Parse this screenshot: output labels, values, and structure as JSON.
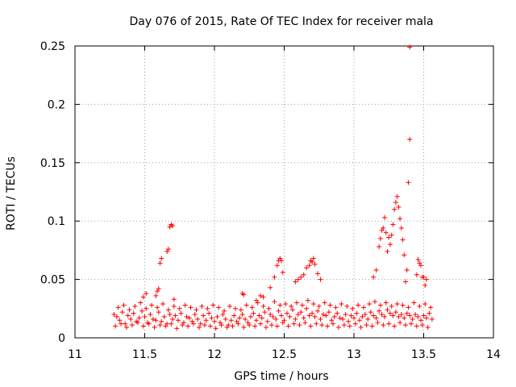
{
  "chart_data": {
    "type": "scatter",
    "title": "Day 076 of 2015, Rate Of TEC Index for receiver mala",
    "xlabel": "GPS time / hours",
    "ylabel": "ROTI / TECUs",
    "xlim": [
      11,
      14
    ],
    "ylim": [
      0,
      0.25
    ],
    "x_ticks": [
      11,
      11.5,
      12,
      12.5,
      13,
      13.5,
      14
    ],
    "x_tick_labels": [
      "11",
      "11.5",
      "12",
      "12.5",
      "13",
      "13.5",
      "14"
    ],
    "y_ticks": [
      0,
      0.05,
      0.1,
      0.15,
      0.2,
      0.25
    ],
    "y_tick_labels": [
      "0",
      "0.05",
      "0.1",
      "0.15",
      "0.2",
      "0.25"
    ],
    "grid": true,
    "marker": "+",
    "series_color": "#ff0000",
    "series": [
      {
        "name": "ROTI",
        "x": [
          11.28,
          11.3,
          11.32,
          11.34,
          11.36,
          11.38,
          11.4,
          11.42,
          11.44,
          11.46,
          11.48,
          11.5,
          11.52,
          11.54,
          11.56,
          11.58,
          11.6,
          11.62,
          11.64,
          11.66,
          11.68,
          11.7,
          11.72,
          11.74,
          11.76,
          11.78,
          11.8,
          11.82,
          11.84,
          11.86,
          11.88,
          11.9,
          11.92,
          11.94,
          11.96,
          11.98,
          12.0,
          12.02,
          12.04,
          12.06,
          12.08,
          12.1,
          12.12,
          12.14,
          12.16,
          12.18,
          12.2,
          12.22,
          12.24,
          12.26,
          12.28,
          12.3,
          12.32,
          12.34,
          12.36,
          12.38,
          12.4,
          12.42,
          12.44,
          12.46,
          12.48,
          12.5,
          12.52,
          12.54,
          12.56,
          12.58,
          12.6,
          12.62,
          12.64,
          12.66,
          12.68,
          12.7,
          12.72,
          12.74,
          12.76,
          12.78,
          12.8,
          12.82,
          12.84,
          12.86,
          12.88,
          12.9,
          12.92,
          12.94,
          12.96,
          12.98,
          13.0,
          13.02,
          13.04,
          13.06,
          13.08,
          13.1,
          13.12,
          13.14,
          13.16,
          13.18,
          13.2,
          13.22,
          13.24,
          13.26,
          13.28,
          13.3,
          13.32,
          13.34,
          13.36,
          13.38,
          13.4,
          13.42,
          13.44,
          13.46,
          13.48,
          13.5,
          13.52,
          13.54,
          13.56,
          11.29,
          11.33,
          11.37,
          11.41,
          11.45,
          11.49,
          11.53,
          11.57,
          11.61,
          11.65,
          11.69,
          11.73,
          11.77,
          11.81,
          11.85,
          11.89,
          11.93,
          11.97,
          12.01,
          12.05,
          12.09,
          12.13,
          12.17,
          12.21,
          12.25,
          12.29,
          12.33,
          12.37,
          12.41,
          12.45,
          12.49,
          12.53,
          12.57,
          12.61,
          12.65,
          12.69,
          12.73,
          12.77,
          12.81,
          12.85,
          12.89,
          12.93,
          12.97,
          13.01,
          13.05,
          13.09,
          13.13,
          13.17,
          13.21,
          13.25,
          13.29,
          13.33,
          13.37,
          13.41,
          13.45,
          13.49,
          13.53,
          11.31,
          11.35,
          11.39,
          11.43,
          11.47,
          11.51,
          11.55,
          11.59,
          11.63,
          11.67,
          11.71,
          11.75,
          11.79,
          11.83,
          11.87,
          11.91,
          11.95,
          11.99,
          12.03,
          12.07,
          12.11,
          12.15,
          12.19,
          12.23,
          12.27,
          12.31,
          12.35,
          12.39,
          12.43,
          12.47,
          12.51,
          12.55,
          12.59,
          12.63,
          12.67,
          12.71,
          12.75,
          12.79,
          12.83,
          12.87,
          12.91,
          12.95,
          12.99,
          13.03,
          13.07,
          13.11,
          13.15,
          13.19,
          13.23,
          13.27,
          13.31,
          13.35,
          13.39,
          13.43,
          13.47,
          13.51,
          13.55,
          11.49,
          11.51,
          11.58,
          11.59,
          11.6,
          11.61,
          11.62,
          11.66,
          11.67,
          11.68,
          11.69,
          11.7,
          11.71,
          12.2,
          12.21,
          12.3,
          12.33,
          12.35,
          12.4,
          12.43,
          12.45,
          12.46,
          12.47,
          12.48,
          12.49,
          12.58,
          12.6,
          12.62,
          12.64,
          12.66,
          12.68,
          12.69,
          12.7,
          12.71,
          12.72,
          12.74,
          12.76,
          13.14,
          13.16,
          13.18,
          13.19,
          13.2,
          13.21,
          13.22,
          13.23,
          13.24,
          13.25,
          13.26,
          13.27,
          13.28,
          13.29,
          13.3,
          13.31,
          13.32,
          13.33,
          13.34,
          13.35,
          13.36,
          13.37,
          13.38,
          13.39,
          13.4,
          13.4,
          13.45,
          13.46,
          13.47,
          13.48,
          13.49,
          13.5,
          13.51,
          13.52
        ],
        "y": [
          0.02,
          0.018,
          0.015,
          0.022,
          0.012,
          0.019,
          0.016,
          0.021,
          0.014,
          0.017,
          0.023,
          0.018,
          0.013,
          0.02,
          0.016,
          0.015,
          0.022,
          0.014,
          0.018,
          0.012,
          0.02,
          0.016,
          0.019,
          0.015,
          0.021,
          0.013,
          0.018,
          0.017,
          0.014,
          0.02,
          0.016,
          0.012,
          0.019,
          0.015,
          0.021,
          0.017,
          0.014,
          0.018,
          0.013,
          0.02,
          0.016,
          0.011,
          0.015,
          0.019,
          0.014,
          0.017,
          0.02,
          0.016,
          0.013,
          0.018,
          0.021,
          0.015,
          0.019,
          0.017,
          0.022,
          0.014,
          0.02,
          0.018,
          0.016,
          0.023,
          0.019,
          0.015,
          0.021,
          0.018,
          0.024,
          0.016,
          0.02,
          0.022,
          0.017,
          0.025,
          0.019,
          0.021,
          0.018,
          0.023,
          0.016,
          0.02,
          0.019,
          0.022,
          0.015,
          0.018,
          0.021,
          0.017,
          0.016,
          0.02,
          0.014,
          0.019,
          0.017,
          0.021,
          0.015,
          0.018,
          0.02,
          0.016,
          0.022,
          0.019,
          0.017,
          0.023,
          0.02,
          0.018,
          0.024,
          0.021,
          0.019,
          0.022,
          0.018,
          0.02,
          0.017,
          0.021,
          0.019,
          0.016,
          0.02,
          0.018,
          0.015,
          0.019,
          0.017,
          0.021,
          0.016,
          0.01,
          0.012,
          0.009,
          0.011,
          0.013,
          0.01,
          0.012,
          0.009,
          0.011,
          0.01,
          0.012,
          0.008,
          0.011,
          0.01,
          0.012,
          0.009,
          0.011,
          0.01,
          0.008,
          0.011,
          0.009,
          0.01,
          0.012,
          0.009,
          0.011,
          0.01,
          0.012,
          0.009,
          0.011,
          0.01,
          0.013,
          0.01,
          0.012,
          0.011,
          0.013,
          0.01,
          0.012,
          0.011,
          0.01,
          0.012,
          0.009,
          0.011,
          0.01,
          0.012,
          0.009,
          0.011,
          0.01,
          0.013,
          0.011,
          0.012,
          0.01,
          0.013,
          0.011,
          0.012,
          0.01,
          0.011,
          0.009,
          0.026,
          0.028,
          0.024,
          0.027,
          0.03,
          0.025,
          0.028,
          0.026,
          0.029,
          0.024,
          0.027,
          0.025,
          0.028,
          0.026,
          0.024,
          0.027,
          0.025,
          0.028,
          0.026,
          0.023,
          0.027,
          0.025,
          0.024,
          0.028,
          0.026,
          0.03,
          0.027,
          0.025,
          0.031,
          0.028,
          0.029,
          0.027,
          0.03,
          0.028,
          0.032,
          0.029,
          0.027,
          0.03,
          0.028,
          0.026,
          0.029,
          0.027,
          0.025,
          0.028,
          0.026,
          0.029,
          0.031,
          0.028,
          0.03,
          0.027,
          0.029,
          0.028,
          0.026,
          0.03,
          0.027,
          0.029,
          0.026,
          0.035,
          0.038,
          0.036,
          0.04,
          0.042,
          0.064,
          0.068,
          0.074,
          0.076,
          0.095,
          0.097,
          0.096,
          0.033,
          0.038,
          0.037,
          0.032,
          0.036,
          0.035,
          0.043,
          0.052,
          0.062,
          0.066,
          0.068,
          0.066,
          0.056,
          0.048,
          0.05,
          0.052,
          0.054,
          0.06,
          0.062,
          0.066,
          0.065,
          0.068,
          0.063,
          0.055,
          0.05,
          0.052,
          0.058,
          0.078,
          0.085,
          0.092,
          0.094,
          0.103,
          0.09,
          0.074,
          0.086,
          0.08,
          0.088,
          0.097,
          0.11,
          0.116,
          0.121,
          0.112,
          0.102,
          0.094,
          0.084,
          0.071,
          0.048,
          0.058,
          0.133,
          0.17,
          0.249,
          0.054,
          0.067,
          0.064,
          0.062,
          0.052,
          0.052,
          0.045,
          0.05
        ]
      }
    ]
  }
}
